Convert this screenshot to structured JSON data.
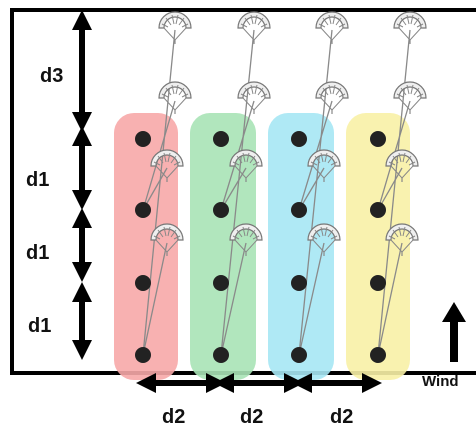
{
  "labels": {
    "d1": "d1",
    "d2": "d2",
    "d3": "d3",
    "wind": "Wind"
  },
  "layout": {
    "columns": 4,
    "points_per_column": 4
  },
  "colors": {
    "column_highlights": [
      "#f7a9a9",
      "#a8e3b6",
      "#a6e7f4",
      "#f8f1a6"
    ],
    "dots": "#222222",
    "arrows": "#000000",
    "border": "#000000",
    "lines": "#8a8a8a"
  },
  "icons": {
    "wind_arrow": "up-arrow-icon",
    "turbine": "fan-blade-icon"
  }
}
